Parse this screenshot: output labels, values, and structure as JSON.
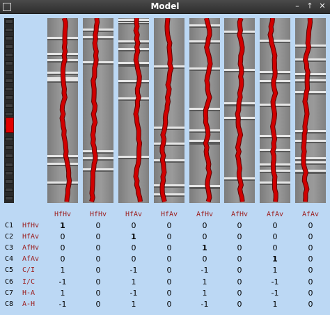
{
  "window": {
    "title": "Model",
    "menu_icon": "window-menu-icon",
    "minimize_icon": "minimize-icon",
    "maximize_icon": "maximize-icon",
    "close_icon": "close-icon"
  },
  "slider": {
    "segments": 22,
    "selected_index": 6
  },
  "columns": [
    "HfHv",
    "HfHv",
    "HfAv",
    "HfAv",
    "AfHv",
    "AfHv",
    "AfAv",
    "AfAv"
  ],
  "rows": [
    {
      "code": "C1",
      "label": "HfHv",
      "values": [
        "1",
        "0",
        "0",
        "0",
        "0",
        "0",
        "0",
        "0"
      ],
      "bold": [
        true,
        false,
        false,
        false,
        false,
        false,
        false,
        false
      ]
    },
    {
      "code": "C2",
      "label": "HfAv",
      "values": [
        "0",
        "0",
        "1",
        "0",
        "0",
        "0",
        "0",
        "0"
      ],
      "bold": [
        false,
        false,
        true,
        false,
        false,
        false,
        false,
        false
      ]
    },
    {
      "code": "C3",
      "label": "AfHv",
      "values": [
        "0",
        "0",
        "0",
        "0",
        "1",
        "0",
        "0",
        "0"
      ],
      "bold": [
        false,
        false,
        false,
        false,
        true,
        false,
        false,
        false
      ]
    },
    {
      "code": "C4",
      "label": "AfAv",
      "values": [
        "0",
        "0",
        "0",
        "0",
        "0",
        "0",
        "1",
        "0"
      ],
      "bold": [
        false,
        false,
        false,
        false,
        false,
        false,
        true,
        false
      ]
    },
    {
      "code": "C5",
      "label": "C/I",
      "values": [
        "1",
        "0",
        "-1",
        "0",
        "-1",
        "0",
        "1",
        "0"
      ],
      "bold": [
        false,
        false,
        false,
        false,
        false,
        false,
        false,
        false
      ]
    },
    {
      "code": "C6",
      "label": "I/C",
      "values": [
        "-1",
        "0",
        "1",
        "0",
        "1",
        "0",
        "-1",
        "0"
      ],
      "bold": [
        false,
        false,
        false,
        false,
        false,
        false,
        false,
        false
      ]
    },
    {
      "code": "C7",
      "label": "H-A",
      "values": [
        "1",
        "0",
        "-1",
        "0",
        "1",
        "0",
        "-1",
        "0"
      ],
      "bold": [
        false,
        false,
        false,
        false,
        false,
        false,
        false,
        false
      ]
    },
    {
      "code": "C8",
      "label": "A-H",
      "values": [
        "-1",
        "0",
        "1",
        "0",
        "-1",
        "0",
        "1",
        "0"
      ],
      "bold": [
        false,
        false,
        false,
        false,
        false,
        false,
        false,
        false
      ]
    }
  ],
  "colors": {
    "background": "#bcd8f4",
    "header_text": "#9b1c1c",
    "trace": "#d00000",
    "thumb": "#e00000"
  }
}
